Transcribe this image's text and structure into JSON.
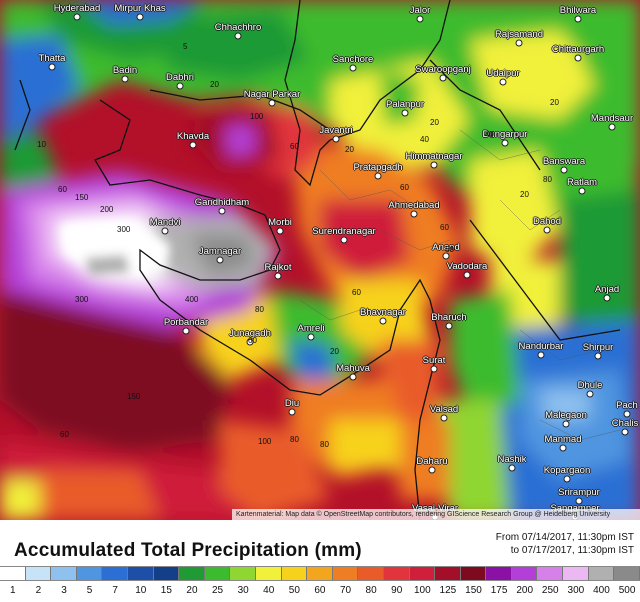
{
  "title": "Accumulated Total Precipitation (mm)",
  "period": {
    "from": "From 07/14/2017, 11:30pm IST",
    "to": "to 07/17/2017, 11:30pm IST"
  },
  "attribution": "Kartenmaterial: Map data © OpenStreetMap contributors, rendering GIScience Research Group @ Heidelberg University",
  "legend": {
    "labels": [
      "1",
      "2",
      "3",
      "5",
      "7",
      "10",
      "15",
      "20",
      "25",
      "30",
      "40",
      "50",
      "60",
      "70",
      "80",
      "90",
      "100",
      "125",
      "150",
      "175",
      "200",
      "250",
      "300",
      "400",
      "500"
    ],
    "colors": [
      "#ffffff",
      "#c7e3f7",
      "#8fc1ef",
      "#4f95e0",
      "#2c6fd4",
      "#1d4ea8",
      "#123f88",
      "#1f9a35",
      "#3dbb2e",
      "#8fd632",
      "#f1f03a",
      "#f7d21c",
      "#f3a51d",
      "#ef7d23",
      "#e95c2a",
      "#e2343d",
      "#cf1f3b",
      "#a30f28",
      "#7e0a20",
      "#8a10a6",
      "#b43fd8",
      "#d680ea",
      "#ecb8f4",
      "#b0b0b0",
      "#8a8a8a"
    ]
  },
  "map": {
    "cities": [
      {
        "name": "Chhachhro"
      },
      {
        "name": "Thatta"
      },
      {
        "name": "Badin"
      },
      {
        "name": "Dabhri"
      },
      {
        "name": "Nagar Parkar"
      },
      {
        "name": "Sanchore"
      },
      {
        "name": "Swaroopganj"
      },
      {
        "name": "Rajsamand"
      },
      {
        "name": "Chittaurgarh"
      },
      {
        "name": "Udaipur"
      },
      {
        "name": "Palanpur"
      },
      {
        "name": "Jalor"
      },
      {
        "name": "Bhilwara"
      },
      {
        "name": "Mandsaur"
      },
      {
        "name": "Khavda"
      },
      {
        "name": "Javantri"
      },
      {
        "name": "Himmatnagar"
      },
      {
        "name": "Dungarpur"
      },
      {
        "name": "Banswara"
      },
      {
        "name": "Ratlam"
      },
      {
        "name": "Pratapgadh"
      },
      {
        "name": "Gandhidham"
      },
      {
        "name": "Ahmedabad"
      },
      {
        "name": "Dahod"
      },
      {
        "name": "Mandvi"
      },
      {
        "name": "Morbi"
      },
      {
        "name": "Surendranagar"
      },
      {
        "name": "Anand"
      },
      {
        "name": "Jamnagar"
      },
      {
        "name": "Vadodara"
      },
      {
        "name": "Rajkot"
      },
      {
        "name": "Anjad"
      },
      {
        "name": "Bhavnagar"
      },
      {
        "name": "Bharuch"
      },
      {
        "name": "Porbandar"
      },
      {
        "name": "Junagadh"
      },
      {
        "name": "Amreli"
      },
      {
        "name": "Nandurbar"
      },
      {
        "name": "Shirpur"
      },
      {
        "name": "Mahuva"
      },
      {
        "name": "Surat"
      },
      {
        "name": "Dhule"
      },
      {
        "name": "Diu"
      },
      {
        "name": "Valsad"
      },
      {
        "name": "Malegaon"
      },
      {
        "name": "Manmad"
      },
      {
        "name": "Pach"
      },
      {
        "name": "Chalis"
      },
      {
        "name": "Nashik"
      },
      {
        "name": "Daharu"
      },
      {
        "name": "Kopargaon"
      },
      {
        "name": "Srirampur"
      },
      {
        "name": "Sangamner"
      },
      {
        "name": "Vasai-Virar"
      },
      {
        "name": "Mirpur Khas"
      },
      {
        "name": "Hyderabad"
      }
    ],
    "contour_labels": [
      "5",
      "20",
      "10",
      "60",
      "100",
      "60",
      "20",
      "20",
      "60",
      "20",
      "200",
      "300",
      "300",
      "400",
      "150",
      "60",
      "80",
      "150",
      "60",
      "20",
      "80",
      "80",
      "100",
      "60",
      "60",
      "80",
      "20",
      "40",
      "60",
      "40"
    ]
  }
}
